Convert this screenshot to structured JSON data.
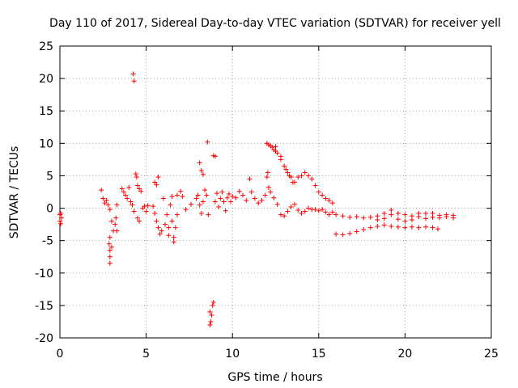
{
  "chart_data": {
    "type": "scatter",
    "title": "Day 110 of 2017, Sidereal Day-to-day VTEC variation (SDTVAR) for receiver yell",
    "xlabel": "GPS time / hours",
    "ylabel": "SDTVAR / TECUs",
    "xlim": [
      0,
      25
    ],
    "ylim": [
      -20,
      25
    ],
    "xticks": [
      0,
      5,
      10,
      15,
      20,
      25
    ],
    "yticks": [
      -20,
      -15,
      -10,
      -5,
      0,
      5,
      10,
      15,
      20,
      25
    ],
    "grid": true,
    "marker": "plus",
    "color": "#ff0000",
    "series": [
      {
        "name": "SDTVAR",
        "points": [
          [
            0.0,
            -1.0
          ],
          [
            0.0,
            -2.0
          ],
          [
            0.05,
            -0.8
          ],
          [
            0.05,
            -2.4
          ],
          [
            0.1,
            -1.5
          ],
          [
            2.4,
            2.8
          ],
          [
            2.5,
            1.5
          ],
          [
            2.6,
            0.8
          ],
          [
            2.7,
            1.2
          ],
          [
            2.8,
            0.5
          ],
          [
            2.9,
            -0.2
          ],
          [
            3.0,
            -2.0
          ],
          [
            2.9,
            -4.5
          ],
          [
            2.85,
            -5.5
          ],
          [
            2.9,
            -6.5
          ],
          [
            2.9,
            -7.5
          ],
          [
            2.9,
            -8.5
          ],
          [
            3.0,
            -6.0
          ],
          [
            3.1,
            -3.5
          ],
          [
            3.2,
            -2.5
          ],
          [
            3.25,
            -1.5
          ],
          [
            3.3,
            0.5
          ],
          [
            3.3,
            -3.5
          ],
          [
            3.6,
            3.0
          ],
          [
            3.7,
            2.5
          ],
          [
            3.8,
            2.0
          ],
          [
            3.9,
            1.5
          ],
          [
            4.0,
            3.2
          ],
          [
            4.1,
            1.0
          ],
          [
            4.2,
            0.5
          ],
          [
            4.25,
            20.7
          ],
          [
            4.3,
            19.6
          ],
          [
            4.4,
            5.3
          ],
          [
            4.45,
            4.8
          ],
          [
            4.5,
            3.5
          ],
          [
            4.6,
            3.0
          ],
          [
            4.7,
            2.6
          ],
          [
            4.3,
            -0.5
          ],
          [
            4.5,
            -1.5
          ],
          [
            4.6,
            -2.0
          ],
          [
            4.8,
            0.0
          ],
          [
            4.9,
            0.3
          ],
          [
            5.0,
            -0.5
          ],
          [
            5.1,
            0.4
          ],
          [
            5.5,
            4.0
          ],
          [
            5.6,
            3.6
          ],
          [
            5.7,
            4.8
          ],
          [
            5.4,
            0.3
          ],
          [
            5.5,
            -0.8
          ],
          [
            5.6,
            -2.0
          ],
          [
            5.7,
            -3.0
          ],
          [
            5.8,
            -4.0
          ],
          [
            5.9,
            -3.5
          ],
          [
            6.0,
            1.5
          ],
          [
            6.1,
            -2.5
          ],
          [
            6.2,
            -1.0
          ],
          [
            6.3,
            -3.0
          ],
          [
            6.4,
            0.5
          ],
          [
            6.5,
            -2.0
          ],
          [
            6.6,
            -4.5
          ],
          [
            6.6,
            -5.2
          ],
          [
            6.7,
            -3.0
          ],
          [
            6.8,
            -1.0
          ],
          [
            6.8,
            2.0
          ],
          [
            6.5,
            1.8
          ],
          [
            6.3,
            -4.2
          ],
          [
            7.0,
            2.6
          ],
          [
            7.1,
            1.8
          ],
          [
            7.3,
            -0.2
          ],
          [
            7.6,
            0.6
          ],
          [
            7.9,
            1.5
          ],
          [
            8.1,
            7.0
          ],
          [
            8.2,
            5.8
          ],
          [
            8.3,
            5.2
          ],
          [
            8.0,
            2.0
          ],
          [
            8.1,
            0.5
          ],
          [
            8.2,
            -0.8
          ],
          [
            8.3,
            1.0
          ],
          [
            8.4,
            2.8
          ],
          [
            8.5,
            2.0
          ],
          [
            8.55,
            10.2
          ],
          [
            8.6,
            -1.0
          ],
          [
            8.7,
            -16.0
          ],
          [
            8.75,
            -17.5
          ],
          [
            8.7,
            -18.0
          ],
          [
            8.8,
            -16.5
          ],
          [
            8.85,
            -15.0
          ],
          [
            8.9,
            -14.5
          ],
          [
            8.9,
            8.1
          ],
          [
            9.0,
            8.0
          ],
          [
            9.0,
            1.0
          ],
          [
            9.1,
            2.3
          ],
          [
            9.2,
            0.2
          ],
          [
            9.3,
            1.5
          ],
          [
            9.4,
            2.5
          ],
          [
            9.5,
            1.0
          ],
          [
            9.6,
            -0.4
          ],
          [
            9.7,
            1.6
          ],
          [
            9.8,
            2.2
          ],
          [
            9.9,
            1.0
          ],
          [
            10.0,
            1.8
          ],
          [
            10.2,
            1.6
          ],
          [
            10.4,
            2.6
          ],
          [
            10.6,
            2.0
          ],
          [
            10.8,
            1.2
          ],
          [
            11.0,
            4.5
          ],
          [
            11.1,
            2.5
          ],
          [
            11.3,
            1.5
          ],
          [
            11.5,
            0.8
          ],
          [
            11.7,
            1.2
          ],
          [
            11.9,
            2.0
          ],
          [
            12.0,
            4.8
          ],
          [
            12.05,
            5.5
          ],
          [
            12.1,
            3.2
          ],
          [
            12.2,
            2.5
          ],
          [
            12.4,
            1.6
          ],
          [
            12.6,
            0.6
          ],
          [
            12.8,
            -1.0
          ],
          [
            13.0,
            -1.2
          ],
          [
            13.2,
            -0.5
          ],
          [
            13.4,
            0.2
          ],
          [
            13.6,
            0.6
          ],
          [
            13.8,
            -0.3
          ],
          [
            14.0,
            -0.8
          ],
          [
            14.2,
            -0.5
          ],
          [
            14.4,
            0.0
          ],
          [
            14.6,
            -0.2
          ],
          [
            14.8,
            -0.2
          ],
          [
            15.0,
            -0.4
          ],
          [
            15.2,
            -0.2
          ],
          [
            15.4,
            -0.6
          ],
          [
            15.6,
            -1.0
          ],
          [
            15.8,
            -0.6
          ],
          [
            12.0,
            10.0
          ],
          [
            12.1,
            9.8
          ],
          [
            12.2,
            9.6
          ],
          [
            12.3,
            9.4
          ],
          [
            12.4,
            9.0
          ],
          [
            12.5,
            9.5
          ],
          [
            12.6,
            8.5
          ],
          [
            12.8,
            7.5
          ],
          [
            13.0,
            6.5
          ],
          [
            13.2,
            5.5
          ],
          [
            13.4,
            4.8
          ],
          [
            13.6,
            4.0
          ],
          [
            13.8,
            4.8
          ],
          [
            14.0,
            5.0
          ],
          [
            14.2,
            5.5
          ],
          [
            14.4,
            5.0
          ],
          [
            14.6,
            4.5
          ],
          [
            14.8,
            3.5
          ],
          [
            15.0,
            2.5
          ],
          [
            15.2,
            2.0
          ],
          [
            15.4,
            1.5
          ],
          [
            15.6,
            1.2
          ],
          [
            15.8,
            0.8
          ],
          [
            12.5,
            8.8
          ],
          [
            12.8,
            8.0
          ],
          [
            13.1,
            6.0
          ],
          [
            13.3,
            5.0
          ],
          [
            13.5,
            4.0
          ],
          [
            16.0,
            -1.0
          ],
          [
            16.4,
            -1.2
          ],
          [
            16.8,
            -1.4
          ],
          [
            17.2,
            -1.3
          ],
          [
            17.6,
            -1.5
          ],
          [
            18.0,
            -1.4
          ],
          [
            18.4,
            -1.2
          ],
          [
            18.8,
            -0.8
          ],
          [
            19.2,
            -0.3
          ],
          [
            19.6,
            -0.8
          ],
          [
            20.0,
            -1.0
          ],
          [
            20.4,
            -1.2
          ],
          [
            20.8,
            -0.8
          ],
          [
            21.2,
            -0.8
          ],
          [
            21.6,
            -0.8
          ],
          [
            22.0,
            -1.1
          ],
          [
            22.4,
            -1.0
          ],
          [
            22.8,
            -1.1
          ],
          [
            16.0,
            -4.0
          ],
          [
            16.4,
            -4.1
          ],
          [
            16.8,
            -3.9
          ],
          [
            17.2,
            -3.6
          ],
          [
            17.6,
            -3.3
          ],
          [
            18.0,
            -3.0
          ],
          [
            18.4,
            -2.8
          ],
          [
            18.8,
            -2.6
          ],
          [
            19.2,
            -2.8
          ],
          [
            19.6,
            -2.9
          ],
          [
            20.0,
            -3.0
          ],
          [
            20.4,
            -2.9
          ],
          [
            20.8,
            -3.0
          ],
          [
            21.2,
            -2.9
          ],
          [
            21.6,
            -3.0
          ],
          [
            21.9,
            -3.2
          ],
          [
            18.4,
            -1.8
          ],
          [
            18.8,
            -1.6
          ],
          [
            19.2,
            -1.0
          ],
          [
            19.6,
            -1.7
          ],
          [
            20.0,
            -2.0
          ],
          [
            20.4,
            -1.8
          ],
          [
            20.8,
            -1.3
          ],
          [
            21.2,
            -1.6
          ],
          [
            21.6,
            -1.4
          ],
          [
            22.0,
            -1.5
          ],
          [
            22.4,
            -1.3
          ],
          [
            22.8,
            -1.5
          ]
        ]
      }
    ]
  }
}
